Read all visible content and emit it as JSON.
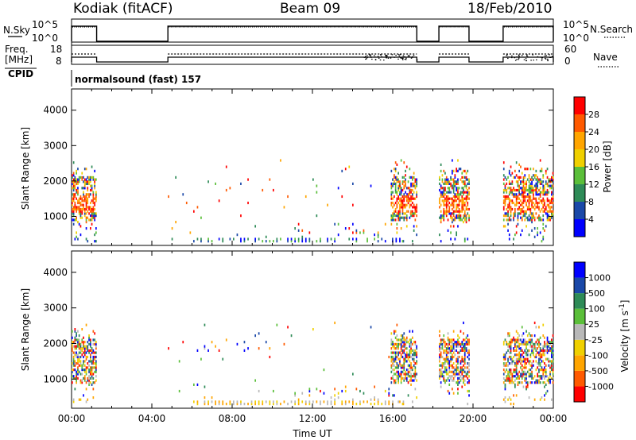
{
  "header": {
    "radar": "Kodiak (fitACF)",
    "beam": "Beam 09",
    "date": "18/Feb/2010"
  },
  "panels": {
    "nsky": {
      "left_label": "N.Sky",
      "right_label": "N.Search",
      "left_ticks": [
        "10^5",
        "10^0"
      ],
      "right_ticks": [
        "10^5",
        "10^0"
      ]
    },
    "freq": {
      "left_label_top": "Freq.",
      "left_label_bottom": "[MHz]",
      "right_label": "Nave",
      "left_ticks": [
        "18",
        "8"
      ],
      "right_ticks": [
        "60",
        "0"
      ]
    },
    "cpid": {
      "label": "CPID",
      "program": "normalsound (fast) 157"
    }
  },
  "colors": {
    "power": [
      "#0000ff",
      "#1a48a8",
      "#2e8b57",
      "#5bbf3a",
      "#f0d000",
      "#ffa500",
      "#ff5a00",
      "#ff0000"
    ],
    "velocity": [
      "#ff0000",
      "#ff5a00",
      "#ffa500",
      "#f0d000",
      "#b8b8b8",
      "#5bbf3a",
      "#2e8b57",
      "#1a48a8",
      "#0000ff"
    ]
  },
  "chart_data": [
    {
      "type": "heatmap",
      "name": "power",
      "ylabel": "Slant Range [km]",
      "xlim": [
        0,
        24
      ],
      "ylim": [
        180,
        4600
      ],
      "yticks": [
        "1000",
        "2000",
        "3000",
        "4000"
      ],
      "colorbar": {
        "label": "Power [dB]",
        "ticks": [
          "4",
          "8",
          "12",
          "16",
          "20",
          "24",
          "28"
        ],
        "range": [
          0,
          32
        ]
      },
      "segments": [
        {
          "t0": 0.0,
          "t1": 1.25,
          "dense": true
        },
        {
          "t0": 4.8,
          "t1": 17.2,
          "dense": false
        },
        {
          "t0": 15.9,
          "t1": 17.2,
          "dense": true
        },
        {
          "t0": 18.3,
          "t1": 19.8,
          "dense": true
        },
        {
          "t0": 21.5,
          "t1": 24.0,
          "dense": true
        }
      ]
    },
    {
      "type": "heatmap",
      "name": "velocity",
      "ylabel": "Slant Range [km]",
      "xlabel": "Time UT",
      "xlim": [
        0,
        24
      ],
      "ylim": [
        180,
        4600
      ],
      "xticks": [
        "00:00",
        "04:00",
        "08:00",
        "12:00",
        "16:00",
        "20:00",
        "00:00"
      ],
      "yticks": [
        "1000",
        "2000",
        "3000",
        "4000"
      ],
      "colorbar": {
        "label": "Velocity [m s",
        "unit_power": "-1",
        "unit_close": "]",
        "ticks": [
          "1000",
          "500",
          "100",
          "25",
          "-25",
          "-100",
          "-500",
          "-1000"
        ]
      }
    }
  ]
}
